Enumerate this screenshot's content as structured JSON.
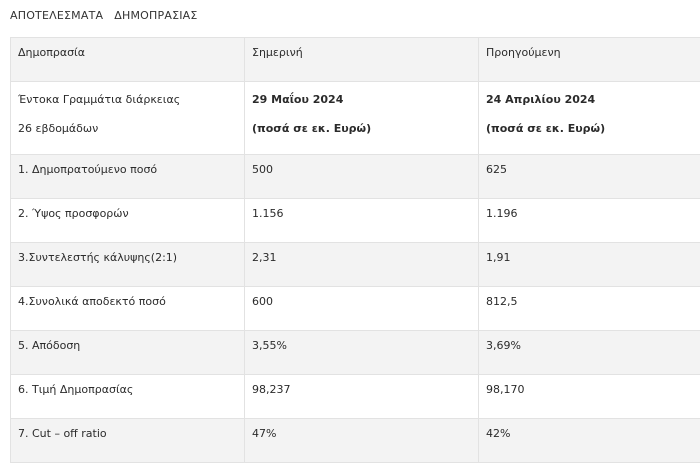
{
  "page": {
    "heading": "ΑΠΟΤΕΛΕΣΜΑΤΑ   ΔΗΜΟΠΡΑΣΙΑΣ"
  },
  "table": {
    "headers": [
      "Δημοπρασία",
      "Σημερινή",
      "Προηγούμενη"
    ],
    "subheader": {
      "col1_line1": "Έντοκα Γραμμάτια διάρκειας",
      "col1_line2": "26 εβδομάδων",
      "col2_line1": "29 Μαΐου 2024",
      "col2_line2": "(ποσά σε εκ. Ευρώ)",
      "col3_line1": "24 Απριλίου 2024",
      "col3_line2": "(ποσά σε εκ. Ευρώ)"
    },
    "rows": [
      [
        "1. Δημοπρατούμενο ποσό",
        "500",
        "625"
      ],
      [
        "2. Ύψος προσφορών",
        "1.156",
        "1.196"
      ],
      [
        "3.Συντελεστής κάλυψης(2:1)",
        "2,31",
        "1,91"
      ],
      [
        "4.Συνολικά αποδεκτό ποσό",
        "600",
        "812,5"
      ],
      [
        "5. Απόδοση",
        "3,55%",
        "3,69%"
      ],
      [
        "6. Τιμή Δημοπρασίας",
        "98,237",
        "98,170"
      ],
      [
        "7. Cut – off ratio",
        "47%",
        "42%"
      ]
    ]
  }
}
